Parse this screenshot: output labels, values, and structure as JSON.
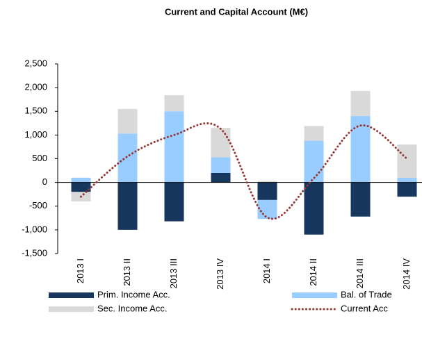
{
  "chart_data": {
    "type": "bar",
    "title": "Current and Capital Account (M€)",
    "categories": [
      "2013 I",
      "2013 II",
      "2013 III",
      "2013 IV",
      "2014 I",
      "2014 II",
      "2014 III",
      "2014 IV"
    ],
    "series": [
      {
        "name": "Prim. Income Acc.",
        "color": "#17375e",
        "values": [
          -200,
          -1000,
          -820,
          200,
          -370,
          -1100,
          -720,
          -300
        ]
      },
      {
        "name": "Bal. of Trade",
        "color": "#99ccff",
        "values": [
          100,
          1030,
          1500,
          330,
          -400,
          880,
          1400,
          100
        ]
      },
      {
        "name": "Sec. Income Acc.",
        "color": "#d9d9d9",
        "values": [
          -200,
          520,
          340,
          620,
          30,
          310,
          530,
          700
        ]
      },
      {
        "name": "Current Acc",
        "color": "#953735",
        "type": "line",
        "values": [
          -300,
          550,
          1000,
          1130,
          -740,
          90,
          1200,
          500
        ]
      }
    ],
    "ylim": [
      -1500,
      2500
    ],
    "yticks": [
      {
        "value": 2500,
        "label": "2,500"
      },
      {
        "value": 2000,
        "label": "2,000"
      },
      {
        "value": 1500,
        "label": "1,500"
      },
      {
        "value": 1000,
        "label": "1,000"
      },
      500,
      0,
      -500,
      {
        "value": -1000,
        "label": "-1,000"
      },
      {
        "value": -1500,
        "label": "-1,500"
      }
    ]
  }
}
